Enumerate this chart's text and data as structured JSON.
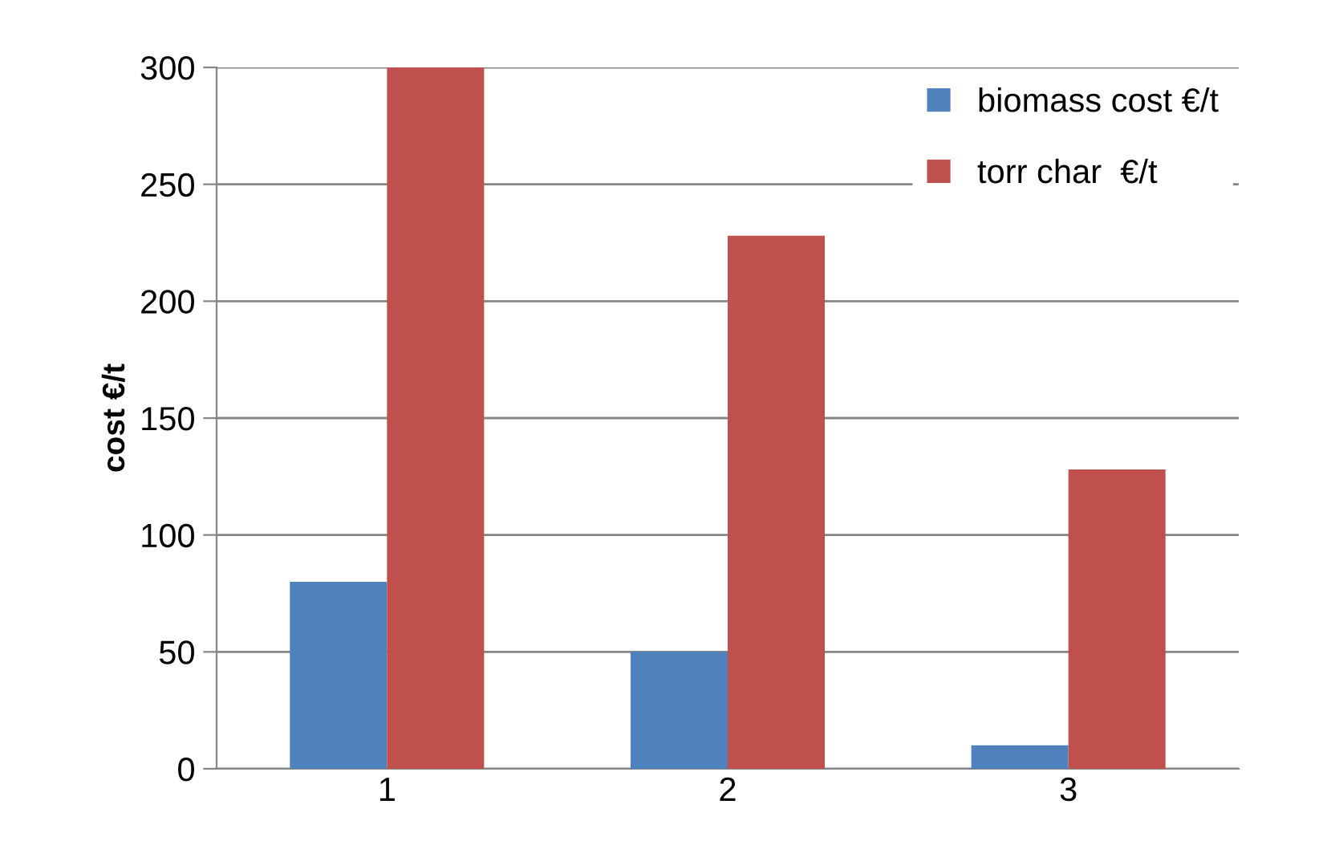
{
  "chart_data": {
    "type": "bar",
    "ylabel": "cost €/t",
    "categories": [
      "1",
      "2",
      "3"
    ],
    "series": [
      {
        "name": "biomass cost €/t",
        "color": "#4f81bd",
        "values": [
          80,
          50,
          10
        ]
      },
      {
        "name": "torr char  €/t",
        "color": "#c0504d",
        "values": [
          300,
          228,
          128
        ]
      }
    ],
    "ylim": [
      0,
      300
    ],
    "yticks": [
      0,
      50,
      100,
      150,
      200,
      250,
      300
    ],
    "grid": "y",
    "legend": "top right"
  }
}
